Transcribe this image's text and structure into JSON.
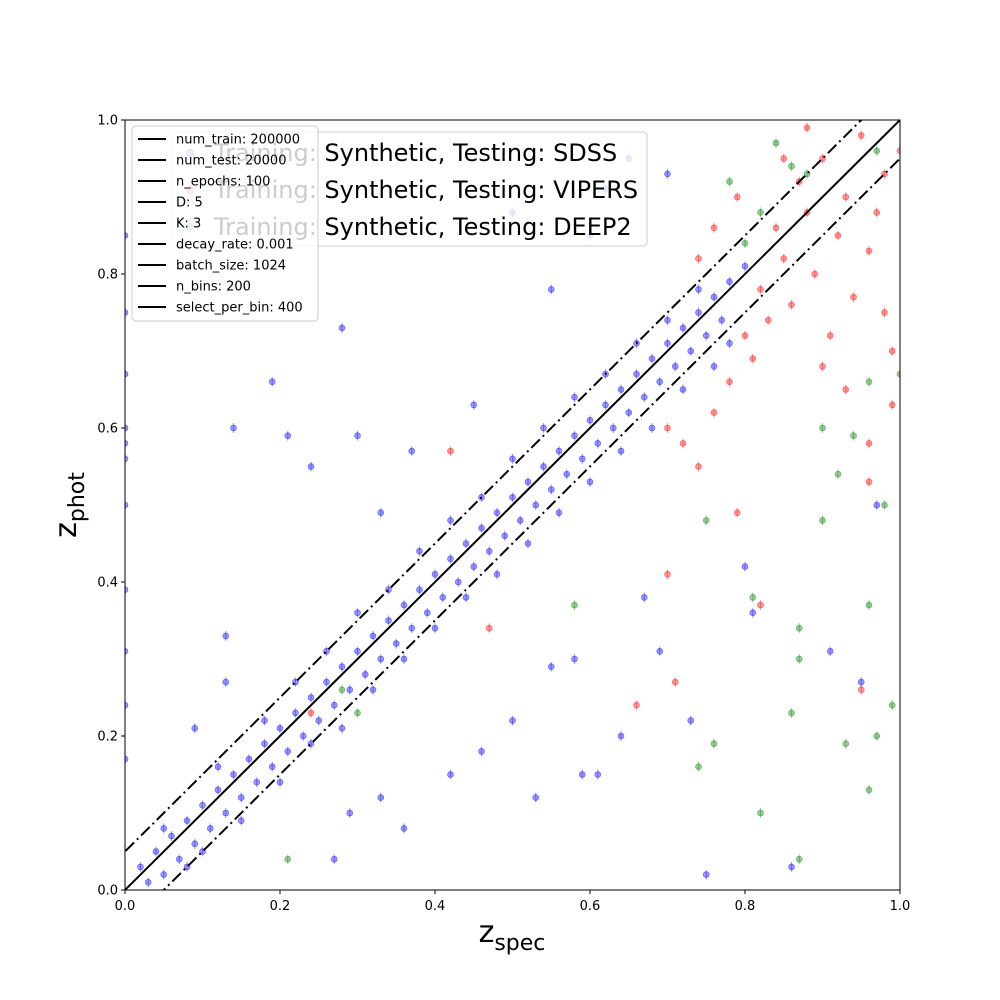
{
  "chart_data": {
    "type": "scatter",
    "xlabel_main": "z",
    "xlabel_sub": "spec",
    "ylabel_main": "z",
    "ylabel_sub": "phot",
    "xlim": [
      0,
      1
    ],
    "ylim": [
      0,
      1
    ],
    "xticks": [
      "0.0",
      "0.2",
      "0.4",
      "0.6",
      "0.8",
      "1.0"
    ],
    "yticks": [
      "0.0",
      "0.2",
      "0.4",
      "0.6",
      "0.8",
      "1.0"
    ],
    "grid": false,
    "reference_lines": [
      {
        "style": "solid",
        "intercept": 0.0
      },
      {
        "style": "dashdot",
        "intercept": 0.05
      },
      {
        "style": "dashdot",
        "intercept": -0.05
      }
    ],
    "params_legend": {
      "placement": "top-left",
      "entries": [
        "num_train: 200000",
        "num_test: 20000",
        "n_epochs: 100",
        "D: 5",
        "K: 3",
        "decay_rate: 0.001",
        "batch_size: 1024",
        "n_bins: 200",
        "select_per_bin: 400"
      ]
    },
    "series_legend": {
      "placement": "top-left",
      "entries": [
        "Training: Synthetic, Testing: SDSS",
        "Training: Synthetic, Testing: VIPERS",
        "Training: Synthetic, Testing: DEEP2"
      ]
    },
    "series": [
      {
        "name": "Training: Synthetic, Testing: SDSS",
        "color": "#0000ff",
        "points": [
          [
            0.02,
            0.03
          ],
          [
            0.03,
            0.01
          ],
          [
            0.04,
            0.05
          ],
          [
            0.05,
            0.02
          ],
          [
            0.06,
            0.07
          ],
          [
            0.07,
            0.04
          ],
          [
            0.08,
            0.09
          ],
          [
            0.09,
            0.06
          ],
          [
            0.1,
            0.11
          ],
          [
            0.11,
            0.08
          ],
          [
            0.12,
            0.13
          ],
          [
            0.13,
            0.1
          ],
          [
            0.14,
            0.15
          ],
          [
            0.15,
            0.12
          ],
          [
            0.16,
            0.17
          ],
          [
            0.17,
            0.14
          ],
          [
            0.18,
            0.19
          ],
          [
            0.19,
            0.16
          ],
          [
            0.2,
            0.21
          ],
          [
            0.21,
            0.18
          ],
          [
            0.22,
            0.23
          ],
          [
            0.23,
            0.2
          ],
          [
            0.24,
            0.25
          ],
          [
            0.25,
            0.22
          ],
          [
            0.26,
            0.27
          ],
          [
            0.27,
            0.24
          ],
          [
            0.28,
            0.29
          ],
          [
            0.29,
            0.26
          ],
          [
            0.3,
            0.31
          ],
          [
            0.31,
            0.28
          ],
          [
            0.32,
            0.33
          ],
          [
            0.33,
            0.3
          ],
          [
            0.34,
            0.35
          ],
          [
            0.35,
            0.32
          ],
          [
            0.36,
            0.37
          ],
          [
            0.37,
            0.34
          ],
          [
            0.38,
            0.39
          ],
          [
            0.39,
            0.36
          ],
          [
            0.4,
            0.41
          ],
          [
            0.41,
            0.38
          ],
          [
            0.42,
            0.43
          ],
          [
            0.43,
            0.4
          ],
          [
            0.44,
            0.45
          ],
          [
            0.45,
            0.42
          ],
          [
            0.46,
            0.47
          ],
          [
            0.47,
            0.44
          ],
          [
            0.48,
            0.49
          ],
          [
            0.49,
            0.46
          ],
          [
            0.5,
            0.51
          ],
          [
            0.51,
            0.48
          ],
          [
            0.52,
            0.53
          ],
          [
            0.53,
            0.5
          ],
          [
            0.54,
            0.55
          ],
          [
            0.55,
            0.52
          ],
          [
            0.56,
            0.57
          ],
          [
            0.57,
            0.54
          ],
          [
            0.58,
            0.59
          ],
          [
            0.59,
            0.56
          ],
          [
            0.6,
            0.61
          ],
          [
            0.61,
            0.58
          ],
          [
            0.62,
            0.63
          ],
          [
            0.63,
            0.6
          ],
          [
            0.64,
            0.65
          ],
          [
            0.65,
            0.62
          ],
          [
            0.66,
            0.67
          ],
          [
            0.67,
            0.64
          ],
          [
            0.68,
            0.69
          ],
          [
            0.69,
            0.66
          ],
          [
            0.7,
            0.71
          ],
          [
            0.71,
            0.68
          ],
          [
            0.72,
            0.73
          ],
          [
            0.73,
            0.7
          ],
          [
            0.74,
            0.75
          ],
          [
            0.75,
            0.72
          ],
          [
            0.76,
            0.77
          ],
          [
            0.77,
            0.74
          ],
          [
            0.78,
            0.79
          ],
          [
            0.8,
            0.81
          ],
          [
            0.05,
            0.08
          ],
          [
            0.08,
            0.03
          ],
          [
            0.1,
            0.05
          ],
          [
            0.12,
            0.16
          ],
          [
            0.15,
            0.09
          ],
          [
            0.18,
            0.22
          ],
          [
            0.2,
            0.14
          ],
          [
            0.22,
            0.27
          ],
          [
            0.24,
            0.19
          ],
          [
            0.26,
            0.31
          ],
          [
            0.28,
            0.21
          ],
          [
            0.3,
            0.36
          ],
          [
            0.32,
            0.26
          ],
          [
            0.34,
            0.39
          ],
          [
            0.36,
            0.3
          ],
          [
            0.38,
            0.44
          ],
          [
            0.4,
            0.34
          ],
          [
            0.42,
            0.48
          ],
          [
            0.44,
            0.38
          ],
          [
            0.46,
            0.51
          ],
          [
            0.48,
            0.41
          ],
          [
            0.5,
            0.56
          ],
          [
            0.52,
            0.45
          ],
          [
            0.54,
            0.6
          ],
          [
            0.56,
            0.49
          ],
          [
            0.58,
            0.64
          ],
          [
            0.6,
            0.53
          ],
          [
            0.62,
            0.67
          ],
          [
            0.64,
            0.57
          ],
          [
            0.66,
            0.71
          ],
          [
            0.68,
            0.6
          ],
          [
            0.7,
            0.74
          ],
          [
            0.72,
            0.65
          ],
          [
            0.74,
            0.78
          ],
          [
            0.76,
            0.68
          ],
          [
            0.78,
            0.71
          ],
          [
            0.14,
            0.6
          ],
          [
            0.19,
            0.66
          ],
          [
            0.21,
            0.59
          ],
          [
            0.24,
            0.55
          ],
          [
            0.28,
            0.73
          ],
          [
            0.3,
            0.59
          ],
          [
            0.33,
            0.49
          ],
          [
            0.37,
            0.57
          ],
          [
            0.45,
            0.63
          ],
          [
            0.5,
            0.88
          ],
          [
            0.55,
            0.78
          ],
          [
            0.6,
            0.85
          ],
          [
            0.62,
            0.91
          ],
          [
            0.65,
            0.95
          ],
          [
            0.7,
            0.93
          ],
          [
            0.27,
            0.04
          ],
          [
            0.29,
            0.1
          ],
          [
            0.33,
            0.12
          ],
          [
            0.36,
            0.08
          ],
          [
            0.42,
            0.15
          ],
          [
            0.46,
            0.18
          ],
          [
            0.5,
            0.22
          ],
          [
            0.53,
            0.12
          ],
          [
            0.55,
            0.29
          ],
          [
            0.58,
            0.3
          ],
          [
            0.59,
            0.15
          ],
          [
            0.61,
            0.15
          ],
          [
            0.64,
            0.2
          ],
          [
            0.67,
            0.38
          ],
          [
            0.69,
            0.31
          ],
          [
            0.73,
            0.22
          ],
          [
            0.75,
            0.02
          ],
          [
            0.8,
            0.42
          ],
          [
            0.81,
            0.36
          ],
          [
            0.86,
            0.03
          ],
          [
            0.91,
            0.31
          ],
          [
            0.95,
            0.27
          ],
          [
            0.97,
            0.5
          ],
          [
            0.0,
            0.85
          ],
          [
            0.0,
            0.75
          ],
          [
            0.0,
            0.67
          ],
          [
            0.0,
            0.58
          ],
          [
            0.0,
            0.5
          ],
          [
            0.0,
            0.39
          ],
          [
            0.0,
            0.31
          ],
          [
            0.0,
            0.24
          ],
          [
            0.0,
            0.17
          ],
          [
            0.0,
            0.6
          ],
          [
            0.0,
            0.56
          ],
          [
            0.09,
            0.21
          ],
          [
            0.13,
            0.33
          ],
          [
            0.13,
            0.27
          ]
        ]
      },
      {
        "name": "Training: Synthetic, Testing: VIPERS",
        "color": "#ff0000",
        "points": [
          [
            0.7,
            0.6
          ],
          [
            0.72,
            0.58
          ],
          [
            0.74,
            0.55
          ],
          [
            0.76,
            0.62
          ],
          [
            0.78,
            0.66
          ],
          [
            0.79,
            0.49
          ],
          [
            0.8,
            0.72
          ],
          [
            0.81,
            0.69
          ],
          [
            0.82,
            0.78
          ],
          [
            0.83,
            0.74
          ],
          [
            0.84,
            0.86
          ],
          [
            0.85,
            0.82
          ],
          [
            0.86,
            0.76
          ],
          [
            0.87,
            0.92
          ],
          [
            0.88,
            0.88
          ],
          [
            0.89,
            0.8
          ],
          [
            0.9,
            0.95
          ],
          [
            0.91,
            0.72
          ],
          [
            0.92,
            0.85
          ],
          [
            0.93,
            0.9
          ],
          [
            0.94,
            0.77
          ],
          [
            0.95,
            0.98
          ],
          [
            0.96,
            0.83
          ],
          [
            0.97,
            0.88
          ],
          [
            0.98,
            0.93
          ],
          [
            0.99,
            0.7
          ],
          [
            1.0,
            0.96
          ],
          [
            0.85,
            0.95
          ],
          [
            0.88,
            0.99
          ],
          [
            0.9,
            0.68
          ],
          [
            0.93,
            0.65
          ],
          [
            0.96,
            0.58
          ],
          [
            0.98,
            0.75
          ],
          [
            0.82,
            0.37
          ],
          [
            0.66,
            0.24
          ],
          [
            0.71,
            0.27
          ],
          [
            0.7,
            0.41
          ],
          [
            0.95,
            0.26
          ],
          [
            0.96,
            0.53
          ],
          [
            0.99,
            0.63
          ],
          [
            0.47,
            0.34
          ],
          [
            0.24,
            0.23
          ],
          [
            0.42,
            0.57
          ],
          [
            0.74,
            0.82
          ],
          [
            0.79,
            0.9
          ],
          [
            0.76,
            0.86
          ]
        ]
      },
      {
        "name": "Training: Synthetic, Testing: DEEP2",
        "color": "#008000",
        "points": [
          [
            0.78,
            0.92
          ],
          [
            0.8,
            0.84
          ],
          [
            0.82,
            0.88
          ],
          [
            0.84,
            0.97
          ],
          [
            0.86,
            0.94
          ],
          [
            0.88,
            0.93
          ],
          [
            0.9,
            0.6
          ],
          [
            0.92,
            0.54
          ],
          [
            0.94,
            0.59
          ],
          [
            0.96,
            0.66
          ],
          [
            0.98,
            0.5
          ],
          [
            1.0,
            0.67
          ],
          [
            0.87,
            0.3
          ],
          [
            0.87,
            0.34
          ],
          [
            0.81,
            0.38
          ],
          [
            0.86,
            0.23
          ],
          [
            0.93,
            0.19
          ],
          [
            0.96,
            0.13
          ],
          [
            0.97,
            0.2
          ],
          [
            0.99,
            0.24
          ],
          [
            0.74,
            0.16
          ],
          [
            0.76,
            0.19
          ],
          [
            0.82,
            0.1
          ],
          [
            0.87,
            0.04
          ],
          [
            0.58,
            0.37
          ],
          [
            0.21,
            0.04
          ],
          [
            0.28,
            0.26
          ],
          [
            0.3,
            0.23
          ],
          [
            0.75,
            0.48
          ],
          [
            0.9,
            0.48
          ],
          [
            0.96,
            0.37
          ],
          [
            0.97,
            0.96
          ]
        ]
      }
    ]
  }
}
